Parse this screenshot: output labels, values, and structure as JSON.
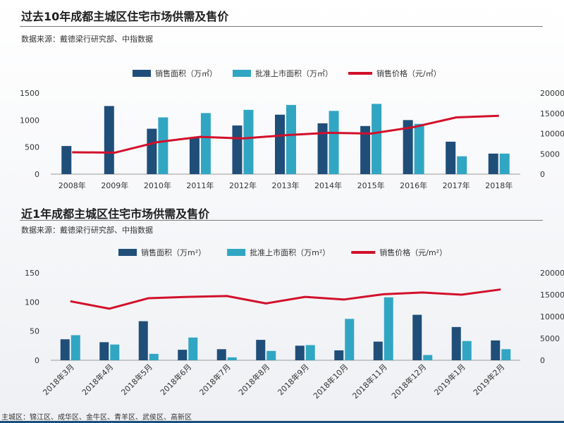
{
  "chart1": {
    "title": "过去10年成都主城区住宅市场供需及售价",
    "source": "数据来源：戴德梁行研究部、中指数据",
    "chart_data": {
      "type": "bar",
      "categories": [
        "2008年",
        "2009年",
        "2010年",
        "2011年",
        "2012年",
        "2013年",
        "2014年",
        "2015年",
        "2016年",
        "2017年",
        "2018年"
      ],
      "series": [
        {
          "name": "销售面积（万㎡）",
          "type": "bar",
          "axis": "left",
          "color": "#1f4e79",
          "values": [
            520,
            1260,
            840,
            680,
            900,
            1100,
            940,
            890,
            1000,
            600,
            380
          ]
        },
        {
          "name": "批准上市面积（万㎡）",
          "type": "bar",
          "axis": "left",
          "color": "#31a6c2",
          "values": [
            null,
            null,
            1050,
            1130,
            1190,
            1280,
            1170,
            1300,
            930,
            330,
            380
          ]
        },
        {
          "name": "销售价格（元/㎡）",
          "type": "line",
          "axis": "right",
          "color": "#d2102b",
          "values": [
            5400,
            5300,
            7900,
            9200,
            8800,
            9600,
            10200,
            10000,
            11600,
            14000,
            14400
          ]
        }
      ],
      "y_left": {
        "min": 0,
        "max": 1500,
        "ticks": [
          0,
          500,
          1000,
          1500
        ]
      },
      "y_right": {
        "min": 0,
        "max": 20000,
        "ticks": [
          0,
          5000,
          10000,
          15000,
          20000
        ]
      },
      "legend_position": "top-center"
    }
  },
  "chart2": {
    "title": "近1年成都主城区住宅市场供需及售价",
    "source": "数据来源：戴德梁行研究部、中指数据",
    "chart_data": {
      "type": "bar",
      "categories": [
        "2018年3月",
        "2018年4月",
        "2018年5月",
        "2018年6月",
        "2018年7月",
        "2018年8月",
        "2018年9月",
        "2018年10月",
        "2018年11月",
        "2018年12月",
        "2019年1月",
        "2019年2月"
      ],
      "series": [
        {
          "name": "销售面积（万m²）",
          "type": "bar",
          "axis": "left",
          "color": "#1f4e79",
          "values": [
            36,
            31,
            67,
            18,
            19,
            35,
            25,
            17,
            32,
            78,
            57,
            34
          ]
        },
        {
          "name": "批准上市面积（万m²）",
          "type": "bar",
          "axis": "left",
          "color": "#31a6c2",
          "values": [
            43,
            27,
            11,
            39,
            5,
            16,
            26,
            71,
            108,
            9,
            33,
            19
          ]
        },
        {
          "name": "销售价格（元/m²）",
          "type": "line",
          "axis": "right",
          "color": "#d2102b",
          "values": [
            13500,
            11800,
            14200,
            14500,
            14700,
            13000,
            14500,
            13900,
            15100,
            15500,
            15000,
            16200
          ]
        }
      ],
      "y_left": {
        "min": 0,
        "max": 150,
        "ticks": [
          0,
          50,
          100,
          150
        ]
      },
      "y_right": {
        "min": 0,
        "max": 20000,
        "ticks": [
          0,
          5000,
          10000,
          15000,
          20000
        ]
      },
      "legend_position": "top-center"
    }
  },
  "footnote": "主城区：锦江区、成华区、金牛区、青羊区、武侯区、高新区"
}
